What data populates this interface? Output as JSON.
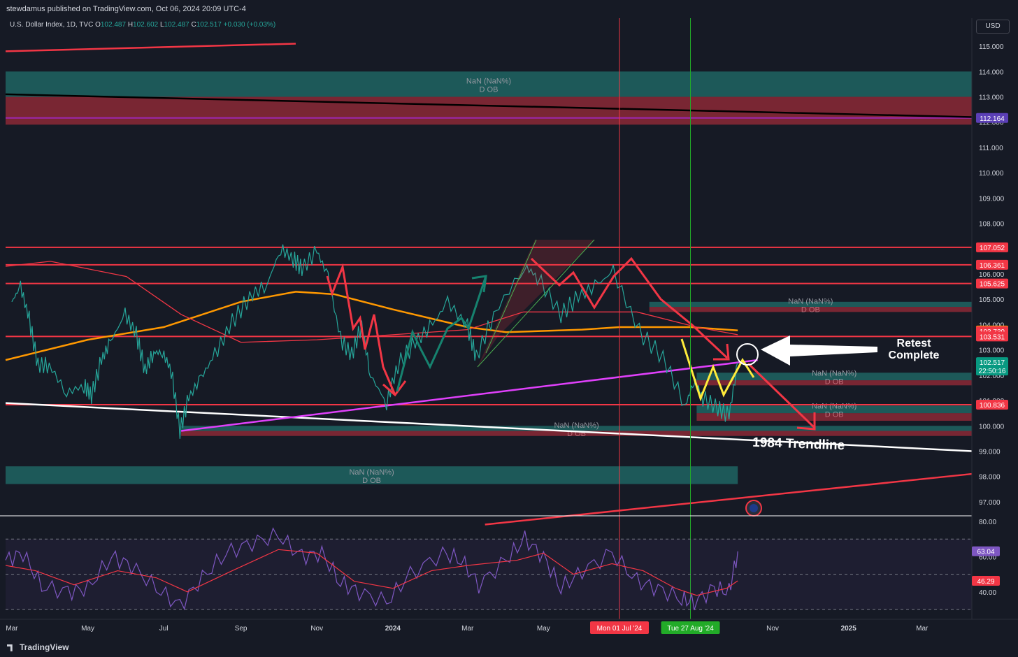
{
  "header": {
    "publisher": "stewdamus published on TradingView.com, Oct 06, 2024 20:09 UTC-4",
    "symbol": "U.S. Dollar Index, 1D, TVC",
    "o_label": "O",
    "o_value": "102.487",
    "h_label": "H",
    "h_value": "102.602",
    "l_label": "L",
    "l_value": "102.487",
    "c_label": "C",
    "c_value": "102.517",
    "change": "+0.030 (+0.03%)",
    "currency": "USD"
  },
  "footer": {
    "brand": "TradingView"
  },
  "chart_data": {
    "type": "line",
    "instrument": "U.S. Dollar Index",
    "interval": "1D",
    "price_axis": {
      "range": [
        96.5,
        115.5
      ],
      "ticks": [
        "115.000",
        "114.000",
        "113.000",
        "112.000",
        "111.000",
        "110.000",
        "109.000",
        "108.000",
        "107.000",
        "106.000",
        "105.000",
        "104.000",
        "103.000",
        "102.000",
        "101.000",
        "100.000",
        "99.000",
        "98.000",
        "97.000"
      ],
      "price_labels": [
        {
          "value": 112.164,
          "text": "112.164",
          "color": "#5b3fb6"
        },
        {
          "value": 107.052,
          "text": "107.052",
          "color": "#f23645"
        },
        {
          "value": 106.361,
          "text": "106.361",
          "color": "#f23645"
        },
        {
          "value": 105.625,
          "text": "105.625",
          "color": "#f23645"
        },
        {
          "value": 103.766,
          "text": "103.766",
          "color": "#ff9800"
        },
        {
          "value": 103.739,
          "text": "103.739",
          "color": "#f23645"
        },
        {
          "value": 103.531,
          "text": "103.531",
          "color": "#f23645"
        },
        {
          "value": 102.517,
          "text": "102.517",
          "sub": "22:50:16",
          "color": "#089981"
        },
        {
          "value": 100.836,
          "text": "100.836",
          "color": "#f23645"
        }
      ]
    },
    "time_axis": {
      "range": [
        "2023-02-24",
        "2025-04-10"
      ],
      "ticks": [
        {
          "date": "2023-03-01",
          "label": "Mar"
        },
        {
          "date": "2023-05-01",
          "label": "May"
        },
        {
          "date": "2023-07-01",
          "label": "Jul"
        },
        {
          "date": "2023-09-01",
          "label": "Sep"
        },
        {
          "date": "2023-11-01",
          "label": "Nov"
        },
        {
          "date": "2024-01-01",
          "label": "2024",
          "bold": true
        },
        {
          "date": "2024-03-01",
          "label": "Mar"
        },
        {
          "date": "2024-05-01",
          "label": "May"
        },
        {
          "date": "2024-11-01",
          "label": "Nov"
        },
        {
          "date": "2025-01-01",
          "label": "2025",
          "bold": true
        },
        {
          "date": "2025-03-01",
          "label": "Mar"
        }
      ],
      "markers": [
        {
          "date": "2024-07-01",
          "label": "Mon 01 Jul '24",
          "color": "#f23645"
        },
        {
          "date": "2024-08-27",
          "label": "Tue 27 Aug '24",
          "color": "#22ab28"
        }
      ]
    },
    "price_series": {
      "name": "DXY",
      "points": [
        [
          "2023-03-01",
          104.9
        ],
        [
          "2023-03-08",
          105.5
        ],
        [
          "2023-03-15",
          104.2
        ],
        [
          "2023-03-22",
          102.4
        ],
        [
          "2023-03-31",
          102.4
        ],
        [
          "2023-04-14",
          101.3
        ],
        [
          "2023-04-28",
          101.6
        ],
        [
          "2023-05-04",
          101.2
        ],
        [
          "2023-05-12",
          102.6
        ],
        [
          "2023-05-19",
          103.3
        ],
        [
          "2023-05-31",
          104.4
        ],
        [
          "2023-06-09",
          103.6
        ],
        [
          "2023-06-16",
          102.2
        ],
        [
          "2023-06-23",
          102.9
        ],
        [
          "2023-06-30",
          102.9
        ],
        [
          "2023-07-07",
          102.2
        ],
        [
          "2023-07-14",
          99.8
        ],
        [
          "2023-07-21",
          101.1
        ],
        [
          "2023-07-31",
          101.9
        ],
        [
          "2023-08-11",
          102.8
        ],
        [
          "2023-08-25",
          104.1
        ],
        [
          "2023-09-08",
          105.1
        ],
        [
          "2023-09-22",
          105.6
        ],
        [
          "2023-10-03",
          107.0
        ],
        [
          "2023-10-13",
          106.6
        ],
        [
          "2023-10-20",
          106.2
        ],
        [
          "2023-11-01",
          106.9
        ],
        [
          "2023-11-10",
          105.9
        ],
        [
          "2023-11-20",
          103.4
        ],
        [
          "2023-11-29",
          102.8
        ],
        [
          "2023-12-07",
          104.0
        ],
        [
          "2023-12-14",
          102.0
        ],
        [
          "2023-12-27",
          100.9
        ],
        [
          "2024-01-05",
          102.4
        ],
        [
          "2024-01-19",
          103.3
        ],
        [
          "2024-02-02",
          104.0
        ],
        [
          "2024-02-14",
          104.9
        ],
        [
          "2024-03-01",
          103.9
        ],
        [
          "2024-03-08",
          102.7
        ],
        [
          "2024-03-22",
          104.4
        ],
        [
          "2024-04-16",
          106.3
        ],
        [
          "2024-04-26",
          105.9
        ],
        [
          "2024-05-15",
          104.4
        ],
        [
          "2024-05-29",
          105.1
        ],
        [
          "2024-06-14",
          105.6
        ],
        [
          "2024-06-26",
          106.1
        ],
        [
          "2024-07-17",
          103.7
        ],
        [
          "2024-08-05",
          102.7
        ],
        [
          "2024-08-23",
          100.8
        ],
        [
          "2024-08-30",
          101.8
        ],
        [
          "2024-09-06",
          101.1
        ],
        [
          "2024-09-18",
          100.7
        ],
        [
          "2024-09-27",
          100.4
        ],
        [
          "2024-10-04",
          102.5
        ]
      ]
    },
    "moving_averages": [
      {
        "color": "#ff9800",
        "points": [
          [
            "2023-02-24",
            102.6
          ],
          [
            "2023-05-01",
            103.4
          ],
          [
            "2023-07-01",
            103.9
          ],
          [
            "2023-09-01",
            104.9
          ],
          [
            "2023-10-15",
            105.3
          ],
          [
            "2023-11-15",
            105.2
          ],
          [
            "2024-01-01",
            104.6
          ],
          [
            "2024-03-01",
            103.9
          ],
          [
            "2024-04-01",
            103.7
          ],
          [
            "2024-06-01",
            103.8
          ],
          [
            "2024-07-01",
            103.9
          ],
          [
            "2024-08-27",
            103.9
          ],
          [
            "2024-10-04",
            103.77
          ]
        ]
      },
      {
        "color": "#f23645",
        "points": [
          [
            "2023-02-24",
            106.3
          ],
          [
            "2023-04-01",
            106.5
          ],
          [
            "2023-06-01",
            105.9
          ],
          [
            "2023-07-15",
            104.4
          ],
          [
            "2023-09-01",
            103.3
          ],
          [
            "2023-11-01",
            103.4
          ],
          [
            "2024-01-01",
            103.6
          ],
          [
            "2024-03-01",
            103.8
          ],
          [
            "2024-04-15",
            104.5
          ],
          [
            "2024-06-01",
            104.5
          ],
          [
            "2024-07-15",
            104.5
          ],
          [
            "2024-09-01",
            103.9
          ],
          [
            "2024-10-04",
            103.6
          ]
        ]
      }
    ],
    "horizontal_levels": [
      {
        "value": 107.052,
        "color": "#f23645"
      },
      {
        "value": 106.361,
        "color": "#f23645"
      },
      {
        "value": 105.625,
        "color": "#f23645"
      },
      {
        "value": 103.531,
        "color": "#f23645"
      },
      {
        "value": 100.836,
        "color": "#f23645"
      },
      {
        "value": 112.164,
        "color": "#9c27b0"
      }
    ],
    "trendlines": [
      {
        "name": "1984 Trendline",
        "color": "#ffffff",
        "from": [
          "2023-02-24",
          100.9
        ],
        "to": [
          "2025-04-10",
          99.0
        ]
      },
      {
        "color": "#e040fb",
        "from": [
          "2023-07-15",
          99.8
        ],
        "to": [
          "2024-10-20",
          102.6
        ]
      },
      {
        "color": "#000000",
        "from": [
          "2023-02-24",
          113.1
        ],
        "to": [
          "2025-04-10",
          112.2
        ]
      },
      {
        "color": "#f23645",
        "from": [
          "2023-02-24",
          114.8
        ],
        "to": [
          "2023-10-15",
          115.1
        ]
      },
      {
        "color": "#f23645",
        "from": [
          "2024-03-15",
          96.1
        ],
        "to": [
          "2025-04-10",
          98.1
        ]
      }
    ],
    "zones": [
      {
        "label": "NaN (NaN%)",
        "sublabel": "D OB",
        "color": "#26a69a",
        "top": 114.0,
        "bottom": 113.0,
        "from": "2023-02-24",
        "to": "2025-04-10"
      },
      {
        "color": "#f23645",
        "top": 113.0,
        "bottom": 111.9,
        "from": "2023-02-24",
        "to": "2025-04-10"
      },
      {
        "label": "NaN (NaN%)",
        "sublabel": "D OB",
        "color": "#26a69a",
        "top": 104.9,
        "bottom": 104.7,
        "from": "2024-07-25",
        "to": "2025-04-10"
      },
      {
        "color": "#f23645",
        "top": 104.7,
        "bottom": 104.5,
        "from": "2024-07-25",
        "to": "2025-04-10"
      },
      {
        "label": "NaN (NaN%)",
        "sublabel": "D OB",
        "color": "#26a69a",
        "top": 102.1,
        "bottom": 101.8,
        "from": "2024-09-01",
        "to": "2025-04-10"
      },
      {
        "color": "#f23645",
        "top": 101.8,
        "bottom": 101.6,
        "from": "2024-09-01",
        "to": "2025-04-10"
      },
      {
        "label": "NaN (NaN%)",
        "sublabel": "D OB",
        "color": "#26a69a",
        "top": 100.8,
        "bottom": 100.5,
        "from": "2024-09-01",
        "to": "2025-04-10"
      },
      {
        "color": "#f23645",
        "top": 100.5,
        "bottom": 100.2,
        "from": "2024-09-01",
        "to": "2025-04-10"
      },
      {
        "label": "NaN (NaN%)",
        "sublabel": "D OB",
        "color": "#26a69a",
        "top": 100.0,
        "bottom": 99.8,
        "from": "2023-07-15",
        "to": "2025-04-10"
      },
      {
        "color": "#f23645",
        "top": 99.8,
        "bottom": 99.6,
        "from": "2023-07-15",
        "to": "2025-04-10"
      },
      {
        "label": "NaN (NaN%)",
        "sublabel": "D OB",
        "color": "#26a69a",
        "top": 98.4,
        "bottom": 97.7,
        "from": "2023-02-24",
        "to": "2024-10-04"
      }
    ],
    "annotations": [
      {
        "text": "Retest",
        "text2": "Complete",
        "color": "#ffffff"
      },
      {
        "text": "1984 Trendline",
        "color": "#ffffff"
      }
    ],
    "rsi": {
      "axis_ticks": [
        "80.00",
        "60.00",
        "40.00"
      ],
      "range": [
        30,
        80
      ],
      "rsi_value": "63.04",
      "signal_value": "46.29",
      "rsi_color": "#7e57c2",
      "signal_color": "#f23645",
      "rsi_points": [
        [
          "2023-02-24",
          58
        ],
        [
          "2023-03-10",
          62
        ],
        [
          "2023-03-25",
          43
        ],
        [
          "2023-04-15",
          40
        ],
        [
          "2023-05-01",
          42
        ],
        [
          "2023-05-20",
          60
        ],
        [
          "2023-06-05",
          55
        ],
        [
          "2023-06-25",
          42
        ],
        [
          "2023-07-14",
          32
        ],
        [
          "2023-08-01",
          48
        ],
        [
          "2023-08-20",
          62
        ],
        [
          "2023-09-10",
          68
        ],
        [
          "2023-10-01",
          72
        ],
        [
          "2023-10-20",
          60
        ],
        [
          "2023-11-05",
          62
        ],
        [
          "2023-11-20",
          45
        ],
        [
          "2023-12-05",
          40
        ],
        [
          "2023-12-27",
          34
        ],
        [
          "2024-01-15",
          50
        ],
        [
          "2024-02-10",
          62
        ],
        [
          "2024-02-25",
          58
        ],
        [
          "2024-03-10",
          44
        ],
        [
          "2024-04-01",
          58
        ],
        [
          "2024-04-16",
          70
        ],
        [
          "2024-05-01",
          60
        ],
        [
          "2024-05-15",
          42
        ],
        [
          "2024-06-01",
          52
        ],
        [
          "2024-06-25",
          62
        ],
        [
          "2024-07-15",
          46
        ],
        [
          "2024-08-01",
          42
        ],
        [
          "2024-08-20",
          36
        ],
        [
          "2024-08-30",
          34
        ],
        [
          "2024-09-15",
          42
        ],
        [
          "2024-09-27",
          40
        ],
        [
          "2024-10-04",
          63
        ]
      ],
      "signal_points": [
        [
          "2023-02-24",
          55
        ],
        [
          "2023-03-20",
          52
        ],
        [
          "2023-04-20",
          44
        ],
        [
          "2023-05-25",
          52
        ],
        [
          "2023-06-25",
          48
        ],
        [
          "2023-07-20",
          40
        ],
        [
          "2023-08-25",
          52
        ],
        [
          "2023-10-01",
          64
        ],
        [
          "2023-11-01",
          62
        ],
        [
          "2023-12-01",
          46
        ],
        [
          "2024-01-01",
          42
        ],
        [
          "2024-02-01",
          52
        ],
        [
          "2024-03-01",
          55
        ],
        [
          "2024-04-10",
          58
        ],
        [
          "2024-05-01",
          62
        ],
        [
          "2024-05-25",
          50
        ],
        [
          "2024-06-25",
          56
        ],
        [
          "2024-07-20",
          52
        ],
        [
          "2024-08-15",
          42
        ],
        [
          "2024-09-01",
          38
        ],
        [
          "2024-09-25",
          42
        ],
        [
          "2024-10-04",
          46.29
        ]
      ]
    }
  }
}
